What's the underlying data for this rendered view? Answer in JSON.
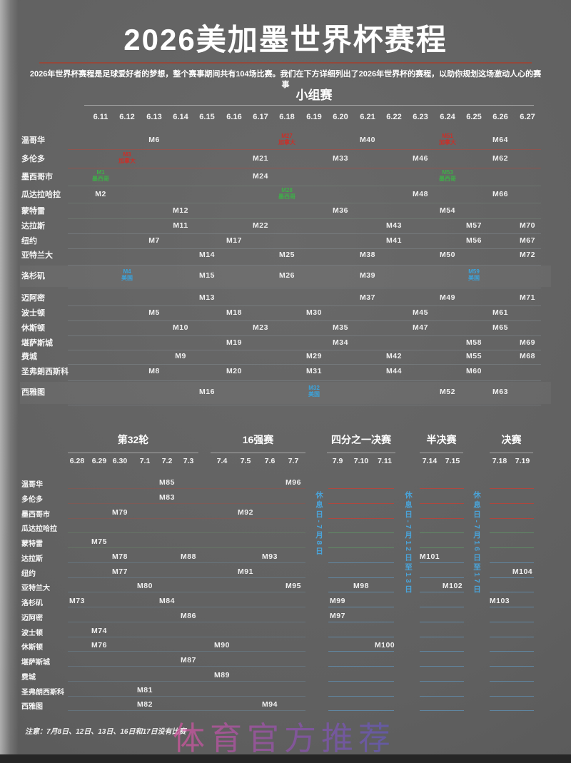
{
  "page": {
    "title": "2026美加墨世界杯赛程",
    "subtitle": "2026年世界杯赛程是足球爱好者的梦想，整个赛事期间共有104场比赛。我们在下方详细列出了2026年世界杯的赛程，以助你规划这场激动人心的赛事",
    "note": "注意：7月8日、12日、13日、16日和17日没有比赛",
    "watermark": "体育官方推荐"
  },
  "colors": {
    "canada_red": "#cc2e27",
    "mexico_green": "#3fae49",
    "usa_blue": "#3ba4dc",
    "restday_blue": "#4aa3d8",
    "divider_red": "#95483a"
  },
  "chart_data": {
    "type": "table",
    "title": "2026美加墨世界杯赛程",
    "xlabel": "日期",
    "ylabel": "举办城市",
    "team_colors": {
      "加拿大": "canada_red",
      "墨西哥": "mexico_green",
      "美国": "usa_blue"
    },
    "rest_days": [
      "休息日-7月8日",
      "休息日-7月12日至13日",
      "休息日-7月16日至17日"
    ],
    "stages": [
      {
        "name": "小组赛",
        "dates": [
          "6.11",
          "6.12",
          "6.13",
          "6.14",
          "6.15",
          "6.16",
          "6.17",
          "6.18",
          "6.19",
          "6.20",
          "6.21",
          "6.22",
          "6.23",
          "6.24",
          "6.25",
          "6.26",
          "6.27"
        ],
        "rows": [
          "温哥华",
          "多伦多",
          "墨西哥市",
          "瓜达拉哈拉",
          "蒙特雷",
          "达拉斯",
          "纽约",
          "亚特兰大",
          "洛杉矶",
          "迈阿密",
          "波士顿",
          "休斯顿",
          "堪萨斯城",
          "费城",
          "圣弗朗西斯科",
          "西雅图"
        ],
        "matches": [
          {
            "m": "M6",
            "city": "温哥华",
            "date": "6.13"
          },
          {
            "m": "M27",
            "city": "温哥华",
            "date": "6.18",
            "team": "加拿大"
          },
          {
            "m": "M40",
            "city": "温哥华",
            "date": "6.21"
          },
          {
            "m": "M51",
            "city": "温哥华",
            "date": "6.24",
            "team": "加拿大"
          },
          {
            "m": "M64",
            "city": "温哥华",
            "date": "6.26"
          },
          {
            "m": "M3",
            "city": "多伦多",
            "date": "6.12",
            "team": "加拿大"
          },
          {
            "m": "M21",
            "city": "多伦多",
            "date": "6.17"
          },
          {
            "m": "M33",
            "city": "多伦多",
            "date": "6.20"
          },
          {
            "m": "M46",
            "city": "多伦多",
            "date": "6.23"
          },
          {
            "m": "M62",
            "city": "多伦多",
            "date": "6.26"
          },
          {
            "m": "M1",
            "city": "墨西哥市",
            "date": "6.11",
            "team": "墨西哥"
          },
          {
            "m": "M24",
            "city": "墨西哥市",
            "date": "6.17"
          },
          {
            "m": "M53",
            "city": "墨西哥市",
            "date": "6.24",
            "team": "墨西哥"
          },
          {
            "m": "M2",
            "city": "瓜达拉哈拉",
            "date": "6.11"
          },
          {
            "m": "M28",
            "city": "瓜达拉哈拉",
            "date": "6.18",
            "team": "墨西哥"
          },
          {
            "m": "M48",
            "city": "瓜达拉哈拉",
            "date": "6.23"
          },
          {
            "m": "M66",
            "city": "瓜达拉哈拉",
            "date": "6.26"
          },
          {
            "m": "M12",
            "city": "蒙特雷",
            "date": "6.14"
          },
          {
            "m": "M36",
            "city": "蒙特雷",
            "date": "6.20"
          },
          {
            "m": "M54",
            "city": "蒙特雷",
            "date": "6.24"
          },
          {
            "m": "M11",
            "city": "达拉斯",
            "date": "6.14"
          },
          {
            "m": "M22",
            "city": "达拉斯",
            "date": "6.17"
          },
          {
            "m": "M43",
            "city": "达拉斯",
            "date": "6.22"
          },
          {
            "m": "M57",
            "city": "达拉斯",
            "date": "6.25"
          },
          {
            "m": "M70",
            "city": "达拉斯",
            "date": "6.27"
          },
          {
            "m": "M7",
            "city": "纽约",
            "date": "6.13"
          },
          {
            "m": "M17",
            "city": "纽约",
            "date": "6.16"
          },
          {
            "m": "M41",
            "city": "纽约",
            "date": "6.22"
          },
          {
            "m": "M56",
            "city": "纽约",
            "date": "6.25"
          },
          {
            "m": "M67",
            "city": "纽约",
            "date": "6.27"
          },
          {
            "m": "M14",
            "city": "亚特兰大",
            "date": "6.15"
          },
          {
            "m": "M25",
            "city": "亚特兰大",
            "date": "6.18"
          },
          {
            "m": "M38",
            "city": "亚特兰大",
            "date": "6.21"
          },
          {
            "m": "M50",
            "city": "亚特兰大",
            "date": "6.24"
          },
          {
            "m": "M72",
            "city": "亚特兰大",
            "date": "6.27"
          },
          {
            "m": "M4",
            "city": "洛杉矶",
            "date": "6.12",
            "team": "美国"
          },
          {
            "m": "M15",
            "city": "洛杉矶",
            "date": "6.15"
          },
          {
            "m": "M26",
            "city": "洛杉矶",
            "date": "6.18"
          },
          {
            "m": "M39",
            "city": "洛杉矶",
            "date": "6.21"
          },
          {
            "m": "M59",
            "city": "洛杉矶",
            "date": "6.25",
            "team": "美国"
          },
          {
            "m": "M13",
            "city": "迈阿密",
            "date": "6.15"
          },
          {
            "m": "M37",
            "city": "迈阿密",
            "date": "6.21"
          },
          {
            "m": "M49",
            "city": "迈阿密",
            "date": "6.24"
          },
          {
            "m": "M71",
            "city": "迈阿密",
            "date": "6.27"
          },
          {
            "m": "M5",
            "city": "波士顿",
            "date": "6.13"
          },
          {
            "m": "M18",
            "city": "波士顿",
            "date": "6.16"
          },
          {
            "m": "M30",
            "city": "波士顿",
            "date": "6.19"
          },
          {
            "m": "M45",
            "city": "波士顿",
            "date": "6.23"
          },
          {
            "m": "M61",
            "city": "波士顿",
            "date": "6.26"
          },
          {
            "m": "M10",
            "city": "休斯顿",
            "date": "6.14"
          },
          {
            "m": "M23",
            "city": "休斯顿",
            "date": "6.17"
          },
          {
            "m": "M35",
            "city": "休斯顿",
            "date": "6.20"
          },
          {
            "m": "M47",
            "city": "休斯顿",
            "date": "6.23"
          },
          {
            "m": "M65",
            "city": "休斯顿",
            "date": "6.26"
          },
          {
            "m": "M19",
            "city": "堪萨斯城",
            "date": "6.16"
          },
          {
            "m": "M34",
            "city": "堪萨斯城",
            "date": "6.20"
          },
          {
            "m": "M58",
            "city": "堪萨斯城",
            "date": "6.25"
          },
          {
            "m": "M69",
            "city": "堪萨斯城",
            "date": "6.27"
          },
          {
            "m": "M9",
            "city": "费城",
            "date": "6.14"
          },
          {
            "m": "M29",
            "city": "费城",
            "date": "6.19"
          },
          {
            "m": "M42",
            "city": "费城",
            "date": "6.22"
          },
          {
            "m": "M55",
            "city": "费城",
            "date": "6.25"
          },
          {
            "m": "M68",
            "city": "费城",
            "date": "6.27"
          },
          {
            "m": "M8",
            "city": "圣弗朗西斯科",
            "date": "6.13"
          },
          {
            "m": "M20",
            "city": "圣弗朗西斯科",
            "date": "6.16"
          },
          {
            "m": "M31",
            "city": "圣弗朗西斯科",
            "date": "6.19"
          },
          {
            "m": "M44",
            "city": "圣弗朗西斯科",
            "date": "6.22"
          },
          {
            "m": "M60",
            "city": "圣弗朗西斯科",
            "date": "6.25"
          },
          {
            "m": "M16",
            "city": "西雅图",
            "date": "6.15"
          },
          {
            "m": "M32",
            "city": "西雅图",
            "date": "6.19",
            "team": "美国"
          },
          {
            "m": "M52",
            "city": "西雅图",
            "date": "6.24"
          },
          {
            "m": "M63",
            "city": "西雅图",
            "date": "6.26"
          }
        ]
      },
      {
        "name": "第32轮",
        "dates": [
          "6.28",
          "6.29",
          "6.30",
          "7.1",
          "7.2",
          "7.3"
        ],
        "matches": [
          {
            "m": "M73",
            "city": "洛杉矶",
            "date": "6.28"
          },
          {
            "m": "M74",
            "city": "波士顿",
            "date": "6.29"
          },
          {
            "m": "M75",
            "city": "蒙特雷",
            "date": "6.29"
          },
          {
            "m": "M76",
            "city": "休斯顿",
            "date": "6.29"
          },
          {
            "m": "M77",
            "city": "纽约",
            "date": "6.30"
          },
          {
            "m": "M78",
            "city": "达拉斯",
            "date": "6.30"
          },
          {
            "m": "M79",
            "city": "墨西哥市",
            "date": "6.30"
          },
          {
            "m": "M80",
            "city": "亚特兰大",
            "date": "7.1"
          },
          {
            "m": "M81",
            "city": "圣弗朗西斯科",
            "date": "7.1"
          },
          {
            "m": "M82",
            "city": "西雅图",
            "date": "7.1"
          },
          {
            "m": "M83",
            "city": "多伦多",
            "date": "7.2"
          },
          {
            "m": "M84",
            "city": "洛杉矶",
            "date": "7.2"
          },
          {
            "m": "M85",
            "city": "温哥华",
            "date": "7.2"
          },
          {
            "m": "M86",
            "city": "迈阿密",
            "date": "7.3"
          },
          {
            "m": "M87",
            "city": "堪萨斯城",
            "date": "7.3"
          },
          {
            "m": "M88",
            "city": "达拉斯",
            "date": "7.3"
          }
        ]
      },
      {
        "name": "16强赛",
        "dates": [
          "7.4",
          "7.5",
          "7.6",
          "7.7"
        ],
        "matches": [
          {
            "m": "M89",
            "city": "费城",
            "date": "7.4"
          },
          {
            "m": "M90",
            "city": "休斯顿",
            "date": "7.4"
          },
          {
            "m": "M91",
            "city": "纽约",
            "date": "7.5"
          },
          {
            "m": "M92",
            "city": "墨西哥市",
            "date": "7.5"
          },
          {
            "m": "M93",
            "city": "达拉斯",
            "date": "7.6"
          },
          {
            "m": "M94",
            "city": "西雅图",
            "date": "7.6"
          },
          {
            "m": "M95",
            "city": "亚特兰大",
            "date": "7.7"
          },
          {
            "m": "M96",
            "city": "温哥华",
            "date": "7.7"
          }
        ]
      },
      {
        "name": "四分之一决赛",
        "dates": [
          "7.9",
          "7.10",
          "7.11"
        ],
        "matches": [
          {
            "m": "M99",
            "city": "洛杉矶",
            "date": "7.9"
          },
          {
            "m": "M97",
            "city": "迈阿密",
            "date": "7.9"
          },
          {
            "m": "M98",
            "city": "亚特兰大",
            "date": "7.10"
          },
          {
            "m": "M100",
            "city": "休斯顿",
            "date": "7.11"
          }
        ]
      },
      {
        "name": "半决赛",
        "dates": [
          "7.14",
          "7.15"
        ],
        "matches": [
          {
            "m": "M101",
            "city": "达拉斯",
            "date": "7.14"
          },
          {
            "m": "M102",
            "city": "亚特兰大",
            "date": "7.15"
          }
        ]
      },
      {
        "name": "决赛",
        "dates": [
          "7.18",
          "7.19"
        ],
        "matches": [
          {
            "m": "M103",
            "city": "洛杉矶",
            "date": "7.18"
          },
          {
            "m": "M104",
            "city": "纽约",
            "date": "7.19"
          }
        ]
      }
    ]
  }
}
